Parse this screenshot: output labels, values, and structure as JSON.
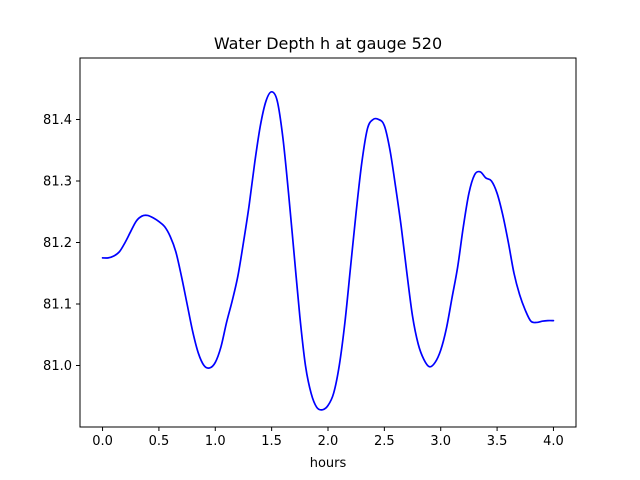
{
  "chart_data": {
    "type": "line",
    "title": "Water Depth h at gauge 520",
    "xlabel": "hours",
    "ylabel": "",
    "xlim": [
      -0.2,
      4.2
    ],
    "ylim": [
      80.9,
      81.5
    ],
    "xticks": [
      0.0,
      0.5,
      1.0,
      1.5,
      2.0,
      2.5,
      3.0,
      3.5,
      4.0
    ],
    "xtick_labels": [
      "0.0",
      "0.5",
      "1.0",
      "1.5",
      "2.0",
      "2.5",
      "3.0",
      "3.5",
      "4.0"
    ],
    "yticks": [
      81.0,
      81.1,
      81.2,
      81.3,
      81.4
    ],
    "ytick_labels": [
      "81.0",
      "81.1",
      "81.2",
      "81.3",
      "81.4"
    ],
    "grid": false,
    "series": [
      {
        "color": "#0000ff",
        "x": [
          0.0,
          0.05,
          0.1,
          0.15,
          0.2,
          0.25,
          0.3,
          0.35,
          0.4,
          0.45,
          0.5,
          0.55,
          0.6,
          0.65,
          0.7,
          0.75,
          0.8,
          0.85,
          0.9,
          0.95,
          1.0,
          1.05,
          1.1,
          1.15,
          1.2,
          1.25,
          1.3,
          1.35,
          1.4,
          1.45,
          1.5,
          1.55,
          1.6,
          1.65,
          1.7,
          1.75,
          1.8,
          1.85,
          1.9,
          1.95,
          2.0,
          2.05,
          2.1,
          2.15,
          2.2,
          2.25,
          2.3,
          2.35,
          2.4,
          2.45,
          2.5,
          2.55,
          2.6,
          2.65,
          2.7,
          2.75,
          2.8,
          2.85,
          2.9,
          2.95,
          3.0,
          3.05,
          3.1,
          3.15,
          3.2,
          3.25,
          3.3,
          3.35,
          3.4,
          3.45,
          3.5,
          3.55,
          3.6,
          3.65,
          3.7,
          3.75,
          3.8,
          3.85,
          3.9,
          3.95,
          4.0
        ],
        "y": [
          81.175,
          81.175,
          81.178,
          81.185,
          81.2,
          81.218,
          81.235,
          81.243,
          81.244,
          81.24,
          81.234,
          81.226,
          81.21,
          81.185,
          81.145,
          81.1,
          81.055,
          81.02,
          81.0,
          80.996,
          81.005,
          81.03,
          81.07,
          81.105,
          81.145,
          81.2,
          81.26,
          81.33,
          81.39,
          81.43,
          81.445,
          81.43,
          81.37,
          81.28,
          81.18,
          81.08,
          81.0,
          80.955,
          80.932,
          80.928,
          80.935,
          80.955,
          81.0,
          81.07,
          81.16,
          81.25,
          81.33,
          81.385,
          81.4,
          81.4,
          81.39,
          81.35,
          81.29,
          81.225,
          81.15,
          81.08,
          81.035,
          81.01,
          80.998,
          81.005,
          81.025,
          81.06,
          81.11,
          81.16,
          81.225,
          81.28,
          81.31,
          81.315,
          81.305,
          81.3,
          81.28,
          81.245,
          81.2,
          81.15,
          81.115,
          81.09,
          81.072,
          81.07,
          81.072,
          81.073,
          81.073
        ]
      }
    ]
  }
}
